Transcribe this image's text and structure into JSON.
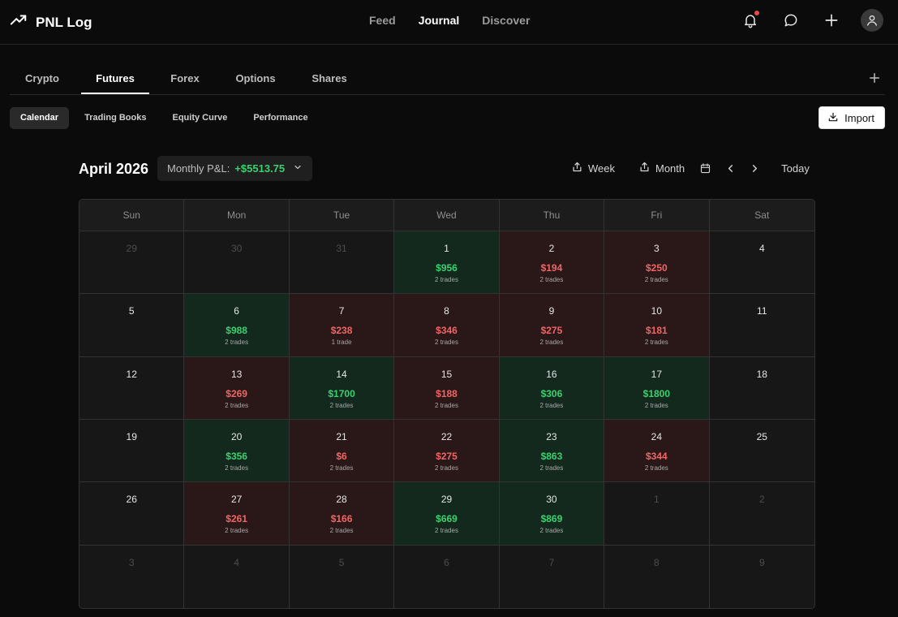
{
  "app": {
    "name": "PNL Log"
  },
  "nav": {
    "feed": "Feed",
    "journal": "Journal",
    "discover": "Discover"
  },
  "icons": {
    "brand": "trending-up-icon",
    "notifications": "bell-icon",
    "messages": "chat-bubble-icon",
    "create": "plus-icon",
    "profile": "user-icon"
  },
  "asset_tabs": [
    "Crypto",
    "Futures",
    "Forex",
    "Options",
    "Shares"
  ],
  "active_asset_tab": "Futures",
  "sub_tabs": [
    "Calendar",
    "Trading Books",
    "Equity Curve",
    "Performance"
  ],
  "active_sub_tab": "Calendar",
  "import_label": "Import",
  "calendar": {
    "month_title": "April 2026",
    "monthly_pnl_label": "Monthly P&L:",
    "monthly_pnl_value": "+$5513.75",
    "week_label": "Week",
    "month_label": "Month",
    "today_label": "Today",
    "days_of_week": [
      "Sun",
      "Mon",
      "Tue",
      "Wed",
      "Thu",
      "Fri",
      "Sat"
    ],
    "colors": {
      "win": "#3bd16f",
      "loss": "#f06565"
    },
    "cells": [
      {
        "day": "29",
        "other": true
      },
      {
        "day": "30",
        "other": true
      },
      {
        "day": "31",
        "other": true
      },
      {
        "day": "1",
        "pnl": "$956",
        "trades": "2 trades",
        "result": "win"
      },
      {
        "day": "2",
        "pnl": "$194",
        "trades": "2 trades",
        "result": "loss"
      },
      {
        "day": "3",
        "pnl": "$250",
        "trades": "2 trades",
        "result": "loss"
      },
      {
        "day": "4"
      },
      {
        "day": "5"
      },
      {
        "day": "6",
        "pnl": "$988",
        "trades": "2 trades",
        "result": "win"
      },
      {
        "day": "7",
        "pnl": "$238",
        "trades": "1 trade",
        "result": "loss"
      },
      {
        "day": "8",
        "pnl": "$346",
        "trades": "2 trades",
        "result": "loss"
      },
      {
        "day": "9",
        "pnl": "$275",
        "trades": "2 trades",
        "result": "loss"
      },
      {
        "day": "10",
        "pnl": "$181",
        "trades": "2 trades",
        "result": "loss"
      },
      {
        "day": "11"
      },
      {
        "day": "12"
      },
      {
        "day": "13",
        "pnl": "$269",
        "trades": "2 trades",
        "result": "loss"
      },
      {
        "day": "14",
        "pnl": "$1700",
        "trades": "2 trades",
        "result": "win"
      },
      {
        "day": "15",
        "pnl": "$188",
        "trades": "2 trades",
        "result": "loss"
      },
      {
        "day": "16",
        "pnl": "$306",
        "trades": "2 trades",
        "result": "win"
      },
      {
        "day": "17",
        "pnl": "$1800",
        "trades": "2 trades",
        "result": "win"
      },
      {
        "day": "18"
      },
      {
        "day": "19"
      },
      {
        "day": "20",
        "pnl": "$356",
        "trades": "2 trades",
        "result": "win"
      },
      {
        "day": "21",
        "pnl": "$6",
        "trades": "2 trades",
        "result": "loss"
      },
      {
        "day": "22",
        "pnl": "$275",
        "trades": "2 trades",
        "result": "loss"
      },
      {
        "day": "23",
        "pnl": "$863",
        "trades": "2 trades",
        "result": "win"
      },
      {
        "day": "24",
        "pnl": "$344",
        "trades": "2 trades",
        "result": "loss"
      },
      {
        "day": "25"
      },
      {
        "day": "26"
      },
      {
        "day": "27",
        "pnl": "$261",
        "trades": "2 trades",
        "result": "loss"
      },
      {
        "day": "28",
        "pnl": "$166",
        "trades": "2 trades",
        "result": "loss"
      },
      {
        "day": "29",
        "pnl": "$669",
        "trades": "2 trades",
        "result": "win"
      },
      {
        "day": "30",
        "pnl": "$869",
        "trades": "2 trades",
        "result": "win"
      },
      {
        "day": "1",
        "other": true
      },
      {
        "day": "2",
        "other": true
      },
      {
        "day": "3",
        "other": true
      },
      {
        "day": "4",
        "other": true
      },
      {
        "day": "5",
        "other": true
      },
      {
        "day": "6",
        "other": true
      },
      {
        "day": "7",
        "other": true
      },
      {
        "day": "8",
        "other": true
      },
      {
        "day": "9",
        "other": true
      }
    ]
  }
}
